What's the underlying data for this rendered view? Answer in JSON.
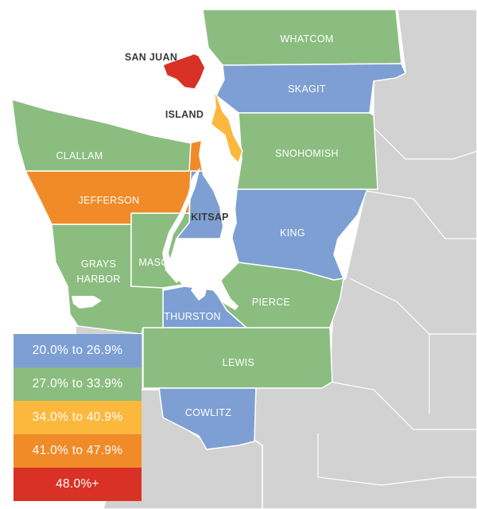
{
  "colors": {
    "bin_20_26": "#7d9fd3",
    "bin_27_33": "#8bbd80",
    "bin_34_40": "#fbb83c",
    "bin_41_47": "#f08b28",
    "bin_48_plus": "#d93126",
    "background_land": "#d2d2d2",
    "water": "#ffffff"
  },
  "counties": [
    {
      "name": "WHATCOM",
      "bin": "27.0% to 33.9%",
      "color": "#8bbd80"
    },
    {
      "name": "SAN JUAN",
      "bin": "48.0%+",
      "color": "#d93126"
    },
    {
      "name": "SKAGIT",
      "bin": "20.0% to 26.9%",
      "color": "#7d9fd3"
    },
    {
      "name": "ISLAND",
      "bin": "34.0% to 40.9%",
      "color": "#fbb83c"
    },
    {
      "name": "CLALLAM",
      "bin": "27.0% to 33.9%",
      "color": "#8bbd80"
    },
    {
      "name": "SNOHOMISH",
      "bin": "27.0% to 33.9%",
      "color": "#8bbd80"
    },
    {
      "name": "JEFFERSON",
      "bin": "41.0% to 47.9%",
      "color": "#f08b28"
    },
    {
      "name": "KITSAP",
      "bin": "20.0% to 26.9%",
      "color": "#7d9fd3"
    },
    {
      "name": "KING",
      "bin": "20.0% to 26.9%",
      "color": "#7d9fd3"
    },
    {
      "name": "GRAYS HARBOR",
      "bin": "27.0% to 33.9%",
      "color": "#8bbd80"
    },
    {
      "name": "MASON",
      "bin": "27.0% to 33.9%",
      "color": "#8bbd80"
    },
    {
      "name": "PIERCE",
      "bin": "27.0% to 33.9%",
      "color": "#8bbd80"
    },
    {
      "name": "THURSTON",
      "bin": "20.0% to 26.9%",
      "color": "#7d9fd3"
    },
    {
      "name": "LEWIS",
      "bin": "27.0% to 33.9%",
      "color": "#8bbd80"
    },
    {
      "name": "COWLITZ",
      "bin": "20.0% to 26.9%",
      "color": "#7d9fd3"
    }
  ],
  "labels": {
    "whatcom": "WHATCOM",
    "san_juan": "SAN JUAN",
    "skagit": "SKAGIT",
    "island": "ISLAND",
    "clallam": "CLALLAM",
    "snohomish": "SNOHOMISH",
    "jefferson": "JEFFERSON",
    "kitsap": "KITSAP",
    "king": "KING",
    "grays_harbor_1": "GRAYS",
    "grays_harbor_2": "HARBOR",
    "mason": "MASON",
    "pierce": "PIERCE",
    "thurston": "THURSTON",
    "lewis": "LEWIS",
    "cowlitz": "COWLITZ"
  },
  "legend": [
    {
      "label": "20.0% to 26.9%",
      "color": "#7d9fd3"
    },
    {
      "label": "27.0% to 33.9%",
      "color": "#8bbd80"
    },
    {
      "label": "34.0% to 40.9%",
      "color": "#fbb83c"
    },
    {
      "label": "41.0% to 47.9%",
      "color": "#f08b28"
    },
    {
      "label": "48.0%+",
      "color": "#d93126"
    }
  ]
}
